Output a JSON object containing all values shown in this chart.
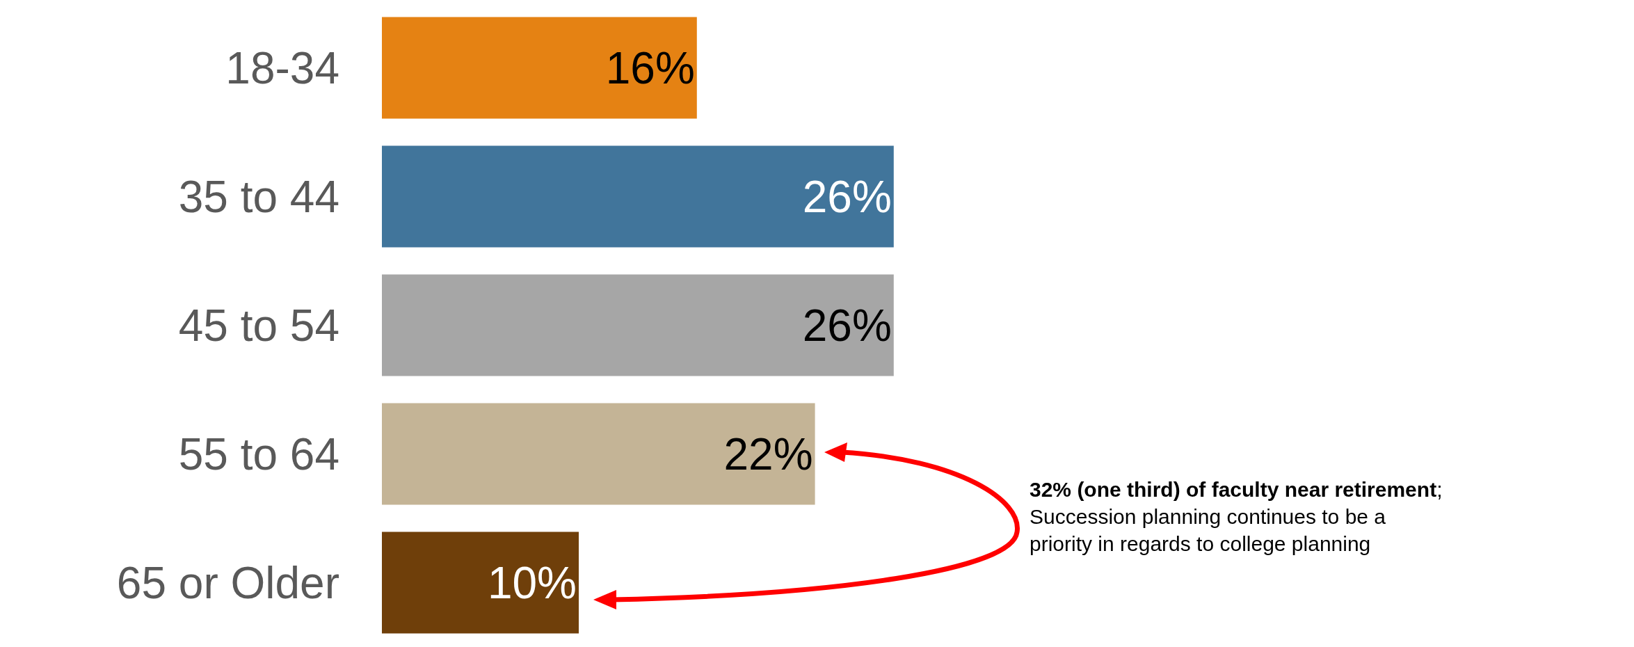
{
  "chart_data": {
    "type": "bar",
    "orientation": "horizontal",
    "categories": [
      "18-34",
      "35 to 44",
      "45 to 54",
      "55 to 64",
      "65 or Older"
    ],
    "values": [
      16,
      26,
      26,
      22,
      10
    ],
    "colors": [
      "#e58213",
      "#41759b",
      "#a6a6a6",
      "#c4b496",
      "#6f3f0a"
    ],
    "value_labels": [
      "16%",
      "26%",
      "26%",
      "22%",
      "10%"
    ],
    "tick_labels": "y",
    "grid": false,
    "legend": false,
    "annotations": [
      "32% (one third) of faculty near retirement; Succession planning continues to be a priority in regards to college planning"
    ]
  }
}
